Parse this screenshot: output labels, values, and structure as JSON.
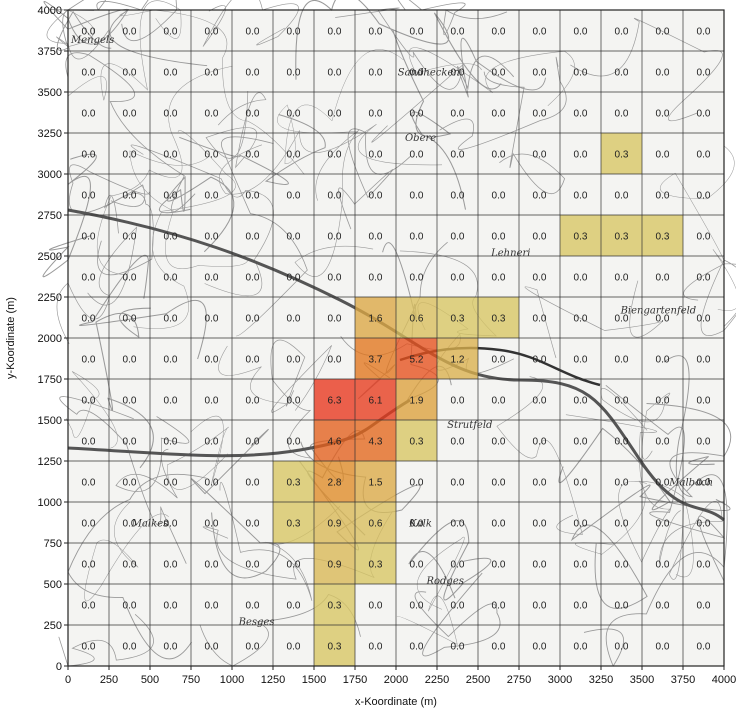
{
  "chart_data": {
    "type": "heatmap",
    "xlabel": "x-Koordinate (m)",
    "ylabel": "y-Koordinate (m)",
    "xlim": [
      0,
      4000
    ],
    "ylim": [
      0,
      4000
    ],
    "cell_size": 250,
    "x_ticks": [
      "0",
      "250",
      "500",
      "750",
      "1000",
      "1250",
      "1500",
      "1750",
      "2000",
      "2250",
      "2500",
      "2750",
      "3000",
      "3250",
      "3500",
      "3750",
      "4000"
    ],
    "y_ticks": [
      "0",
      "250",
      "500",
      "750",
      "1000",
      "1250",
      "1500",
      "1750",
      "2000",
      "2250",
      "2500",
      "2750",
      "3000",
      "3250",
      "3500",
      "3750",
      "4000"
    ],
    "rows": [
      {
        "y": 3750,
        "values": [
          0.0,
          0.0,
          0.0,
          0.0,
          0.0,
          0.0,
          0.0,
          0.0,
          0.0,
          0.0,
          0.0,
          0.0,
          0.0,
          0.0,
          0.0,
          0.0
        ]
      },
      {
        "y": 3500,
        "values": [
          0.0,
          0.0,
          0.0,
          0.0,
          0.0,
          0.0,
          0.0,
          0.0,
          0.0,
          0.0,
          0.0,
          0.0,
          0.0,
          0.0,
          0.0,
          0.0
        ]
      },
      {
        "y": 3250,
        "values": [
          0.0,
          0.0,
          0.0,
          0.0,
          0.0,
          0.0,
          0.0,
          0.0,
          0.0,
          0.0,
          0.0,
          0.0,
          0.0,
          0.0,
          0.0,
          0.0
        ]
      },
      {
        "y": 3000,
        "values": [
          0.0,
          0.0,
          0.0,
          0.0,
          0.0,
          0.0,
          0.0,
          0.0,
          0.0,
          0.0,
          0.0,
          0.0,
          0.0,
          0.3,
          0.0,
          0.0
        ]
      },
      {
        "y": 2750,
        "values": [
          0.0,
          0.0,
          0.0,
          0.0,
          0.0,
          0.0,
          0.0,
          0.0,
          0.0,
          0.0,
          0.0,
          0.0,
          0.0,
          0.0,
          0.0,
          0.0
        ]
      },
      {
        "y": 2500,
        "values": [
          0.0,
          0.0,
          0.0,
          0.0,
          0.0,
          0.0,
          0.0,
          0.0,
          0.0,
          0.0,
          0.0,
          0.0,
          0.3,
          0.3,
          0.3,
          0.0
        ]
      },
      {
        "y": 2250,
        "values": [
          0.0,
          0.0,
          0.0,
          0.0,
          0.0,
          0.0,
          0.0,
          0.0,
          0.0,
          0.0,
          0.0,
          0.0,
          0.0,
          0.0,
          0.0,
          0.0
        ]
      },
      {
        "y": 2000,
        "values": [
          0.0,
          0.0,
          0.0,
          0.0,
          0.0,
          0.0,
          0.0,
          1.6,
          0.6,
          0.3,
          0.3,
          0.0,
          0.0,
          0.0,
          0.0,
          0.0
        ]
      },
      {
        "y": 1750,
        "values": [
          0.0,
          0.0,
          0.0,
          0.0,
          0.0,
          0.0,
          0.0,
          3.7,
          5.2,
          1.2,
          0.0,
          0.0,
          0.0,
          0.0,
          0.0,
          0.0
        ]
      },
      {
        "y": 1500,
        "values": [
          0.0,
          0.0,
          0.0,
          0.0,
          0.0,
          0.0,
          6.3,
          6.1,
          1.9,
          0.0,
          0.0,
          0.0,
          0.0,
          0.0,
          0.0,
          0.0
        ]
      },
      {
        "y": 1250,
        "values": [
          0.0,
          0.0,
          0.0,
          0.0,
          0.0,
          0.0,
          4.6,
          4.3,
          0.3,
          0.0,
          0.0,
          0.0,
          0.0,
          0.0,
          0.0,
          0.0
        ]
      },
      {
        "y": 1000,
        "values": [
          0.0,
          0.0,
          0.0,
          0.0,
          0.0,
          0.3,
          2.8,
          1.5,
          0.0,
          0.0,
          0.0,
          0.0,
          0.0,
          0.0,
          0.0,
          0.0
        ]
      },
      {
        "y": 750,
        "values": [
          0.0,
          0.0,
          0.0,
          0.0,
          0.0,
          0.3,
          0.9,
          0.6,
          0.0,
          0.0,
          0.0,
          0.0,
          0.0,
          0.0,
          0.0,
          0.0
        ]
      },
      {
        "y": 500,
        "values": [
          0.0,
          0.0,
          0.0,
          0.0,
          0.0,
          0.0,
          0.9,
          0.3,
          0.0,
          0.0,
          0.0,
          0.0,
          0.0,
          0.0,
          0.0,
          0.0
        ]
      },
      {
        "y": 250,
        "values": [
          0.0,
          0.0,
          0.0,
          0.0,
          0.0,
          0.0,
          0.3,
          0.0,
          0.0,
          0.0,
          0.0,
          0.0,
          0.0,
          0.0,
          0.0,
          0.0
        ]
      },
      {
        "y": 0,
        "values": [
          0.0,
          0.0,
          0.0,
          0.0,
          0.0,
          0.0,
          0.3,
          0.0,
          0.0,
          0.0,
          0.0,
          0.0,
          0.0,
          0.0,
          0.0,
          0.0
        ]
      }
    ],
    "grid": true,
    "color_scale": {
      "low": "#d6cc6a",
      "mid": "#e0801c",
      "high": "#e8301c"
    }
  },
  "map": {
    "place_names": [
      {
        "label": "Mengels",
        "x": 150,
        "y": 3800
      },
      {
        "label": "Sandhecken",
        "x": 2200,
        "y": 3600
      },
      {
        "label": "Obere",
        "x": 2150,
        "y": 3200
      },
      {
        "label": "Lehneri",
        "x": 2700,
        "y": 2500
      },
      {
        "label": "Biengartenfeld",
        "x": 3600,
        "y": 2150
      },
      {
        "label": "Strutfeld",
        "x": 2450,
        "y": 1450
      },
      {
        "label": "Malkes",
        "x": 500,
        "y": 850
      },
      {
        "label": "Rodges",
        "x": 2300,
        "y": 500
      },
      {
        "label": "Besges",
        "x": 1150,
        "y": 250
      },
      {
        "label": "Kalk",
        "x": 2150,
        "y": 850
      },
      {
        "label": "Malbach",
        "x": 3800,
        "y": 1100
      }
    ]
  }
}
